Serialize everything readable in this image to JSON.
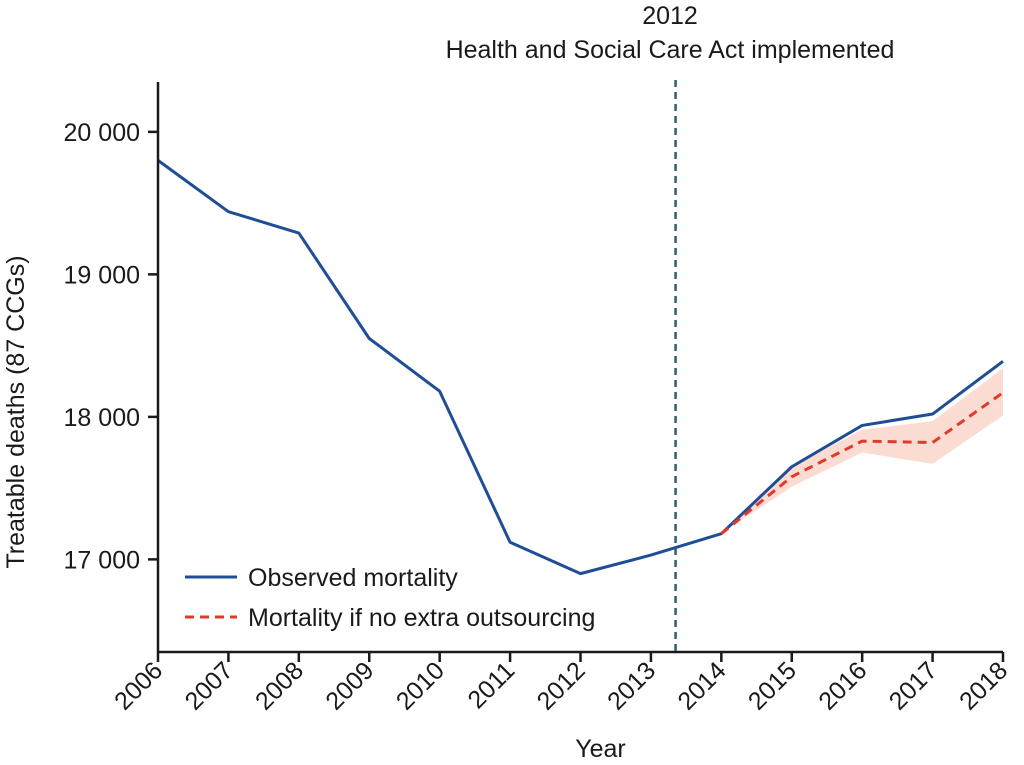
{
  "chart_data": {
    "type": "line",
    "x": [
      "2006",
      "2007",
      "2008",
      "2009",
      "2010",
      "2011",
      "2012",
      "2013",
      "2014",
      "2015",
      "2016",
      "2017",
      "2018"
    ],
    "xlabel": "Year",
    "ylabel": "Treatable deaths (87 CCGs)",
    "ylim": [
      16350,
      20350
    ],
    "yticks": [
      17000,
      18000,
      19000,
      20000
    ],
    "ytick_labels": [
      "17 000",
      "18 000",
      "19 000",
      "20 000"
    ],
    "series": [
      {
        "name": "Observed mortality",
        "color": "#1f4e96",
        "style": "solid",
        "x": [
          "2006",
          "2007",
          "2008",
          "2009",
          "2010",
          "2011",
          "2012",
          "2013",
          "2014",
          "2015",
          "2016",
          "2017",
          "2018"
        ],
        "values": [
          19800,
          19440,
          19290,
          18550,
          18180,
          17120,
          16900,
          17030,
          17180,
          17650,
          17940,
          18020,
          18390
        ]
      },
      {
        "name": "Mortality if no extra outsourcing",
        "color": "#e03a2c",
        "style": "dashed",
        "x": [
          "2014",
          "2015",
          "2016",
          "2017",
          "2018"
        ],
        "values": [
          17180,
          17580,
          17830,
          17820,
          18170
        ],
        "band_lower": [
          17180,
          17510,
          17750,
          17670,
          18010
        ],
        "band_upper": [
          17180,
          17650,
          17910,
          17970,
          18340
        ],
        "band_color": "#fbdcd3"
      }
    ],
    "annotations": [
      {
        "x_between": [
          "2013",
          "2014"
        ],
        "x_fraction": 0.35,
        "style": "dashed-vertical-line",
        "color": "#2f5d6e",
        "label_line1": "2012",
        "label_line2": "Health and Social Care Act implemented"
      }
    ],
    "legend": {
      "placement": "bottom-left"
    },
    "grid": false
  }
}
